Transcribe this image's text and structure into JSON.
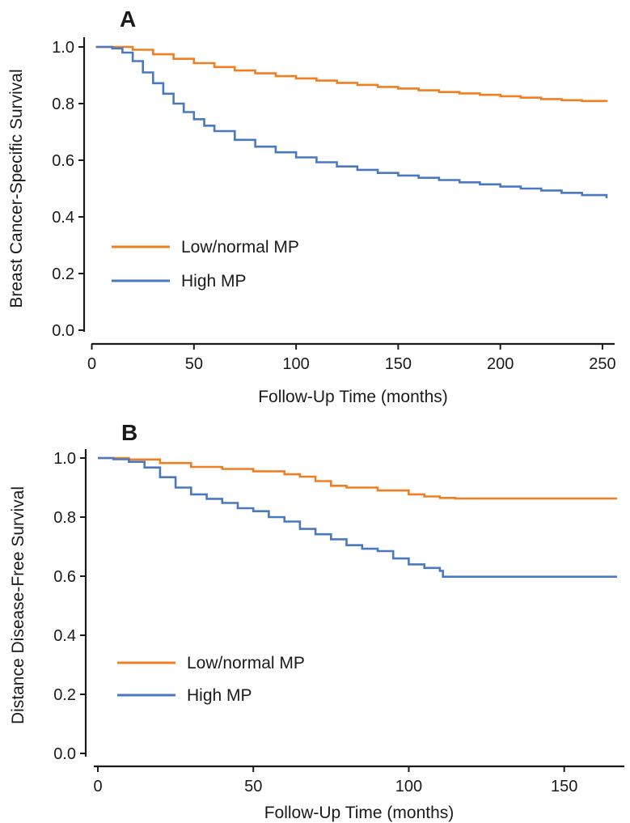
{
  "chart_data": [
    {
      "type": "line",
      "panel_label": "A",
      "xlabel": "Follow-Up Time (months)",
      "ylabel": "Breast Cancer-Specific Survival",
      "xlim": [
        0,
        255
      ],
      "ylim": [
        0,
        1.0
      ],
      "xticks": [
        0,
        50,
        100,
        150,
        200,
        250
      ],
      "yticks": [
        0.0,
        0.2,
        0.4,
        0.6,
        0.8,
        1.0
      ],
      "xtick_labels": [
        "0",
        "50",
        "100",
        "150",
        "200",
        "250"
      ],
      "ytick_labels": [
        "0.0",
        "0.2",
        "0.4",
        "0.6",
        "0.8",
        "1.0"
      ],
      "legend_position": "lower-left",
      "series": [
        {
          "name": "Low/normal MP",
          "color": "#F07F22",
          "x": [
            2,
            10,
            20,
            30,
            40,
            50,
            60,
            70,
            80,
            90,
            100,
            110,
            120,
            130,
            140,
            150,
            160,
            170,
            180,
            190,
            200,
            210,
            220,
            230,
            240,
            252
          ],
          "y": [
            1.0,
            1.0,
            0.99,
            0.974,
            0.958,
            0.943,
            0.929,
            0.917,
            0.907,
            0.897,
            0.889,
            0.881,
            0.873,
            0.866,
            0.859,
            0.853,
            0.847,
            0.841,
            0.836,
            0.831,
            0.826,
            0.821,
            0.816,
            0.812,
            0.809,
            0.806
          ]
        },
        {
          "name": "High MP",
          "color": "#4A79C1",
          "x": [
            2,
            10,
            15,
            20,
            25,
            30,
            35,
            40,
            45,
            50,
            55,
            60,
            70,
            80,
            90,
            100,
            110,
            120,
            130,
            140,
            150,
            160,
            170,
            180,
            190,
            200,
            210,
            220,
            230,
            240,
            252
          ],
          "y": [
            1.0,
            0.995,
            0.98,
            0.95,
            0.91,
            0.872,
            0.835,
            0.8,
            0.77,
            0.745,
            0.722,
            0.703,
            0.672,
            0.648,
            0.628,
            0.61,
            0.593,
            0.578,
            0.566,
            0.555,
            0.546,
            0.538,
            0.53,
            0.522,
            0.515,
            0.507,
            0.5,
            0.493,
            0.485,
            0.477,
            0.466
          ]
        }
      ]
    },
    {
      "type": "line",
      "panel_label": "B",
      "xlabel": "Follow-Up Time (months)",
      "ylabel": "Distance Disease-Free Survival",
      "xlim": [
        0,
        167
      ],
      "ylim": [
        0,
        1.0
      ],
      "xticks": [
        0,
        50,
        100,
        150
      ],
      "yticks": [
        0.0,
        0.2,
        0.4,
        0.6,
        0.8,
        1.0
      ],
      "xtick_labels": [
        "0",
        "50",
        "100",
        "150"
      ],
      "ytick_labels": [
        "0.0",
        "0.2",
        "0.4",
        "0.6",
        "0.8",
        "1.0"
      ],
      "legend_position": "lower-left",
      "series": [
        {
          "name": "Low/normal MP",
          "color": "#F07F22",
          "x": [
            0,
            10,
            20,
            30,
            40,
            50,
            60,
            65,
            70,
            75,
            80,
            90,
            100,
            105,
            110,
            115,
            167
          ],
          "y": [
            1.0,
            0.995,
            0.983,
            0.97,
            0.963,
            0.955,
            0.945,
            0.937,
            0.922,
            0.906,
            0.9,
            0.89,
            0.877,
            0.87,
            0.865,
            0.863,
            0.863
          ]
        },
        {
          "name": "High MP",
          "color": "#4A79C1",
          "x": [
            0,
            5,
            10,
            15,
            20,
            25,
            30,
            35,
            40,
            45,
            50,
            55,
            60,
            65,
            70,
            75,
            80,
            85,
            90,
            95,
            100,
            105,
            110,
            111,
            167
          ],
          "y": [
            1.0,
            0.996,
            0.987,
            0.968,
            0.935,
            0.9,
            0.877,
            0.862,
            0.848,
            0.83,
            0.82,
            0.8,
            0.785,
            0.76,
            0.742,
            0.725,
            0.705,
            0.693,
            0.685,
            0.66,
            0.64,
            0.628,
            0.618,
            0.598,
            0.598
          ]
        }
      ]
    }
  ]
}
